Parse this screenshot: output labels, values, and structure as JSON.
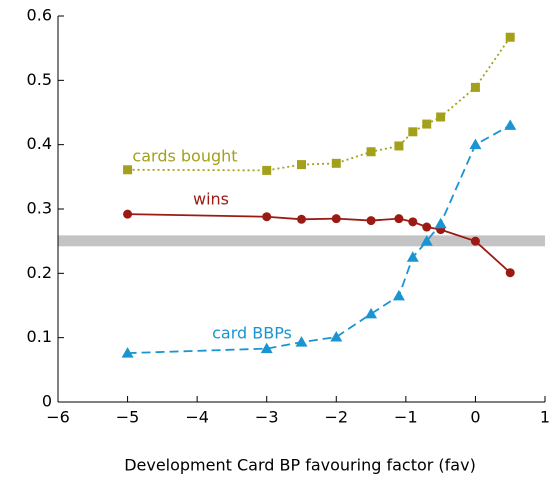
{
  "chart_data": {
    "type": "line",
    "x_label": "Development Card BP favouring factor (fav)",
    "x": [
      -5,
      -3,
      -2.5,
      -2,
      -1.5,
      -1.1,
      -0.9,
      -0.7,
      -0.5,
      0,
      0.5
    ],
    "series": [
      {
        "name": "cards bought",
        "color": "#a3a11c",
        "marker": "square",
        "line_style": "dotted",
        "values": [
          0.361,
          0.36,
          0.369,
          0.371,
          0.389,
          0.398,
          0.42,
          0.432,
          0.443,
          0.489,
          0.567
        ]
      },
      {
        "name": "wins",
        "color": "#9b1b14",
        "marker": "circle",
        "line_style": "solid",
        "values": [
          0.292,
          0.288,
          0.284,
          0.285,
          0.282,
          0.285,
          0.28,
          0.272,
          0.268,
          0.25,
          0.201
        ]
      },
      {
        "name": "card BBPs",
        "color": "#1a95d1",
        "marker": "triangle",
        "line_style": "dashed",
        "values": [
          0.076,
          0.083,
          0.093,
          0.101,
          0.137,
          0.165,
          0.225,
          0.25,
          0.277,
          0.4,
          0.43
        ]
      }
    ],
    "reference_band": [
      0.242,
      0.259
    ],
    "reference_band_color": "#c4c4c4",
    "xlim": [
      -6,
      1
    ],
    "xticks": [
      {
        "value": -6,
        "label": "−6"
      },
      {
        "value": -5,
        "label": "−5"
      },
      {
        "value": -4,
        "label": "−4"
      },
      {
        "value": -3,
        "label": "−3"
      },
      {
        "value": -2,
        "label": "−2"
      },
      {
        "value": -1,
        "label": "−1"
      },
      0,
      1
    ],
    "ylim": [
      0,
      0.6
    ],
    "yticks": [
      0,
      0.1,
      0.2,
      0.3,
      0.4,
      0.5,
      0.6
    ]
  }
}
